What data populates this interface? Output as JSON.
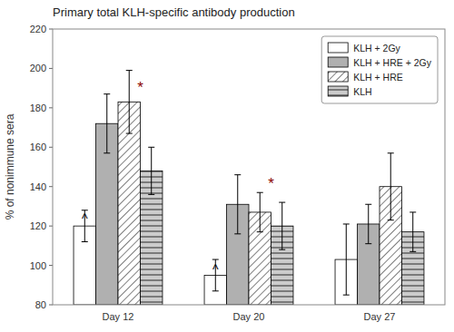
{
  "chart_data": {
    "type": "bar",
    "title": "Primary  total KLH-specific antibody production",
    "ylabel": "% of nonimmune sera",
    "categories": [
      "Day 12",
      "Day 20",
      "Day 27"
    ],
    "series": [
      {
        "name": "KLH + 2Gy",
        "color": "white",
        "values": [
          120,
          95,
          103
        ],
        "errors": [
          8,
          8,
          18
        ]
      },
      {
        "name": "KLH + HRE + 2Gy",
        "color": "#b0b0b0",
        "values": [
          172,
          131,
          121
        ],
        "errors": [
          15,
          15,
          10
        ]
      },
      {
        "name": "KLH + HRE",
        "color": "white",
        "values": [
          183,
          127,
          140
        ],
        "errors": [
          16,
          10,
          17
        ]
      },
      {
        "name": "KLH",
        "color": "#cccccc",
        "values": [
          148,
          120,
          117
        ],
        "errors": [
          12,
          12,
          10
        ]
      }
    ],
    "annotations": [
      {
        "text": "^",
        "category": "Day 12",
        "series": [
          "KLH + 2Gy"
        ],
        "y": 127,
        "color": "black"
      },
      {
        "text": "*",
        "category": "Day 12",
        "series": [
          "KLH + HRE",
          "KLH"
        ],
        "y": 192,
        "color": "darkred"
      },
      {
        "text": "^",
        "category": "Day 20",
        "series": [
          "KLH + 2Gy"
        ],
        "y": 101,
        "color": "black"
      },
      {
        "text": "*",
        "category": "Day 20",
        "series": [
          "KLH + HRE",
          "KLH"
        ],
        "y": 143,
        "color": "darkred"
      }
    ],
    "ylim": [
      80,
      220
    ],
    "yticks": [
      80,
      100,
      120,
      140,
      160,
      180,
      200,
      220
    ],
    "grid": false,
    "legend": "upper right"
  }
}
